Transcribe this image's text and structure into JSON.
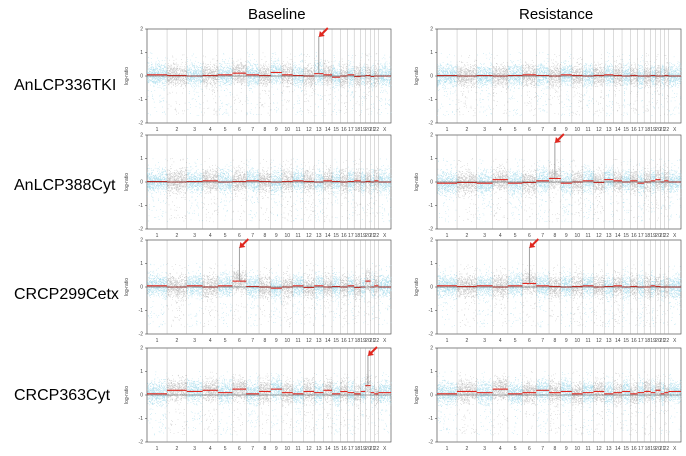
{
  "columns": [
    "Baseline",
    "Resistance"
  ],
  "rows": [
    "AnLCP336TKI",
    "AnLCP388Cyt",
    "CRCP299Cetx",
    "CRCP363Cyt"
  ],
  "chart_data": {
    "type": "scatter",
    "description_layout": "4x2 grid of copy-number (log ratio) genome-wide scatter panels",
    "columns": [
      "Baseline",
      "Resistance"
    ],
    "rows": [
      "AnLCP336TKI",
      "AnLCP388Cyt",
      "CRCP299Cetx",
      "CRCP363Cyt"
    ],
    "ylabel": "log-ratio",
    "ylim": [
      -2,
      2
    ],
    "y_ticks": [
      "2",
      "1",
      "0",
      "-1",
      "-2"
    ],
    "x_tick_labels": [
      "1",
      "2",
      "3",
      "4",
      "5",
      "6",
      "7",
      "8",
      "9",
      "10",
      "11",
      "12",
      "13",
      "14",
      "15",
      "16",
      "17",
      "18",
      "19",
      "20",
      "21",
      "22",
      "X"
    ],
    "chromosomes": [
      "1",
      "2",
      "3",
      "4",
      "5",
      "6",
      "7",
      "8",
      "9",
      "10",
      "11",
      "12",
      "13",
      "14",
      "15",
      "16",
      "17",
      "18",
      "19",
      "20",
      "21",
      "22",
      "X"
    ],
    "colors": {
      "points_alt1": "#9fd8ea",
      "points_alt2": "#b8b8b8",
      "segments": "#e0271f",
      "arrow": "#e0271f",
      "outliers": "#a33"
    },
    "annotations": [
      {
        "panel": "AnLCP336TKI / Baseline",
        "arrow_at_chromosome": "13"
      },
      {
        "panel": "AnLCP388Cyt / Resistance",
        "arrow_at_chromosome": "8"
      },
      {
        "panel": "CRCP299Cetx / Baseline",
        "arrow_at_chromosome": "6"
      },
      {
        "panel": "CRCP299Cetx / Resistance",
        "arrow_at_chromosome": "6"
      },
      {
        "panel": "CRCP363Cyt / Baseline",
        "arrow_at_chromosome": "20"
      }
    ],
    "panels": [
      {
        "row": "AnLCP336TKI",
        "column": "Baseline",
        "segments_log_ratio": [
          0.05,
          0.02,
          0.0,
          0.02,
          0.05,
          0.12,
          0.05,
          0.02,
          0.15,
          0.05,
          0.02,
          0.0,
          0.1,
          0.05,
          -0.05,
          0.0,
          0.05,
          -0.02,
          0.0,
          0.02,
          -0.02,
          0.0,
          0.0
        ],
        "arrow": true,
        "arrow_chr": "13"
      },
      {
        "row": "AnLCP336TKI",
        "column": "Resistance",
        "segments_log_ratio": [
          0.02,
          0.0,
          0.02,
          0.0,
          0.02,
          0.05,
          0.02,
          0.0,
          0.05,
          0.02,
          0.0,
          0.02,
          0.05,
          0.02,
          0.0,
          0.02,
          0.0,
          0.0,
          0.02,
          0.0,
          0.0,
          0.02,
          0.0
        ],
        "arrow": false
      },
      {
        "row": "AnLCP388Cyt",
        "column": "Baseline",
        "segments_log_ratio": [
          0.02,
          0.0,
          0.02,
          0.05,
          0.0,
          0.02,
          0.05,
          0.02,
          0.0,
          0.02,
          0.05,
          0.02,
          0.0,
          0.05,
          0.02,
          0.0,
          0.02,
          0.05,
          0.0,
          0.02,
          0.0,
          0.05,
          0.0
        ],
        "arrow": false
      },
      {
        "row": "AnLCP388Cyt",
        "column": "Resistance",
        "segments_log_ratio": [
          -0.05,
          -0.02,
          -0.05,
          0.1,
          -0.05,
          -0.02,
          0.05,
          0.15,
          -0.05,
          0.0,
          0.05,
          -0.02,
          0.1,
          0.05,
          0.0,
          0.05,
          -0.05,
          0.0,
          0.05,
          0.1,
          0.0,
          0.05,
          0.0
        ],
        "arrow": true,
        "arrow_chr": "8"
      },
      {
        "row": "CRCP299Cetx",
        "column": "Baseline",
        "segments_log_ratio": [
          0.05,
          0.0,
          0.05,
          0.0,
          0.05,
          0.25,
          0.02,
          0.0,
          -0.05,
          0.0,
          0.05,
          -0.02,
          0.05,
          0.0,
          0.02,
          0.0,
          0.05,
          -0.02,
          0.0,
          0.25,
          0.0,
          0.05,
          0.0
        ],
        "arrow": true,
        "arrow_chr": "6"
      },
      {
        "row": "CRCP299Cetx",
        "column": "Resistance",
        "segments_log_ratio": [
          0.05,
          0.02,
          0.05,
          0.0,
          0.05,
          0.15,
          0.05,
          0.02,
          0.0,
          0.02,
          0.05,
          0.0,
          0.02,
          0.05,
          0.0,
          0.02,
          0.0,
          0.0,
          0.05,
          0.02,
          0.0,
          0.0,
          0.0
        ],
        "arrow": true,
        "arrow_chr": "6"
      },
      {
        "row": "CRCP363Cyt",
        "column": "Baseline",
        "segments_log_ratio": [
          0.05,
          0.2,
          0.15,
          0.2,
          0.1,
          0.25,
          0.05,
          0.15,
          0.25,
          0.1,
          0.05,
          0.15,
          0.1,
          0.2,
          0.05,
          0.15,
          0.1,
          0.05,
          0.15,
          0.4,
          0.1,
          0.05,
          0.1
        ],
        "arrow": true,
        "arrow_chr": "20"
      },
      {
        "row": "CRCP363Cyt",
        "column": "Resistance",
        "segments_log_ratio": [
          0.05,
          0.15,
          0.1,
          0.25,
          0.05,
          0.1,
          0.2,
          0.1,
          0.15,
          0.05,
          0.1,
          0.15,
          0.05,
          0.1,
          0.15,
          0.05,
          0.1,
          0.15,
          0.1,
          0.2,
          0.05,
          0.1,
          0.15
        ],
        "arrow": false
      }
    ]
  }
}
